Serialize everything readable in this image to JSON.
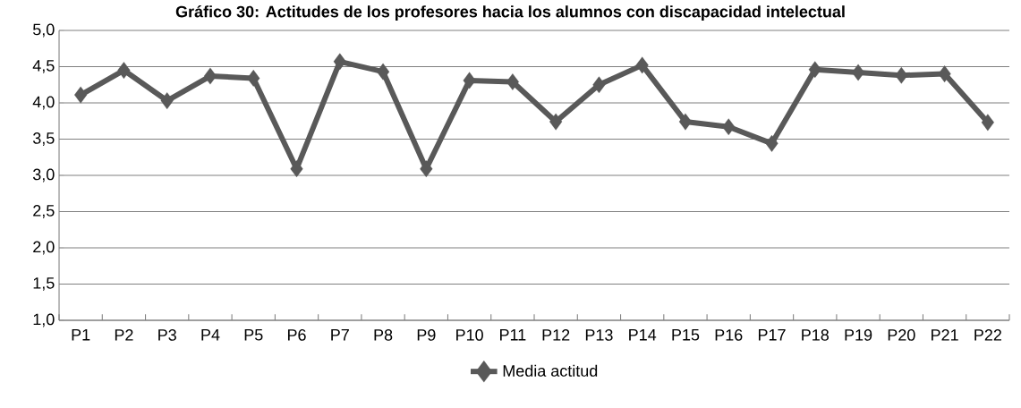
{
  "chart_data": {
    "type": "line",
    "title": "Gráfico 30: Actitudes de los profesores hacia los alumnos con discapacidad intelectual",
    "categories": [
      "P1",
      "P2",
      "P3",
      "P4",
      "P5",
      "P6",
      "P7",
      "P8",
      "P9",
      "P10",
      "P11",
      "P12",
      "P13",
      "P14",
      "P15",
      "P16",
      "P17",
      "P18",
      "P19",
      "P20",
      "P21",
      "P22"
    ],
    "series": [
      {
        "name": "Media actitud",
        "color": "#595959",
        "values": [
          4.11,
          4.45,
          4.03,
          4.37,
          4.34,
          3.09,
          4.57,
          4.43,
          3.09,
          4.31,
          4.29,
          3.74,
          4.25,
          4.52,
          3.74,
          3.67,
          3.44,
          4.46,
          4.42,
          4.38,
          4.4,
          3.73
        ]
      }
    ],
    "ylim": [
      1.0,
      5.0
    ],
    "yticks": [
      {
        "value": 1.0,
        "label": "1,0"
      },
      {
        "value": 1.5,
        "label": "1,5"
      },
      {
        "value": 2.0,
        "label": "2,0"
      },
      {
        "value": 2.5,
        "label": "2,5"
      },
      {
        "value": 3.0,
        "label": "3,0"
      },
      {
        "value": 3.5,
        "label": "3,5"
      },
      {
        "value": 4.0,
        "label": "4,0"
      },
      {
        "value": 4.5,
        "label": "4,5"
      },
      {
        "value": 5.0,
        "label": "5,0"
      }
    ],
    "grid": "y",
    "legend": "bottom",
    "marker": "diamond",
    "line_style": "solid"
  }
}
